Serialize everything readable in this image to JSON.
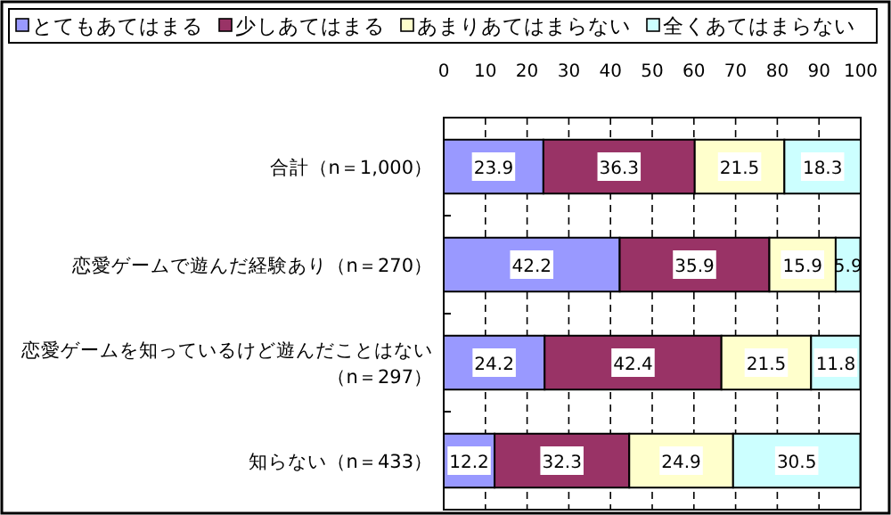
{
  "chart_data": {
    "type": "bar",
    "orientation": "horizontal",
    "stacked": true,
    "data_labels": true,
    "legend": "top",
    "grid": "x",
    "categories": [
      "合計（n＝1,000）",
      "恋愛ゲームで遊んだ経験あり（n＝270）",
      "恋愛ゲームを知っているけど遊んだことはない（n＝297）",
      "知らない（n＝433）"
    ],
    "xlim": [
      0,
      100
    ],
    "xticks": [
      0,
      10,
      20,
      30,
      40,
      50,
      60,
      70,
      80,
      90,
      100
    ],
    "series": [
      {
        "name": "とてもあてはまる",
        "color": "#9999ff",
        "values": [
          23.9,
          42.2,
          24.2,
          12.2
        ]
      },
      {
        "name": "少しあてはまる",
        "color": "#993366",
        "values": [
          36.3,
          35.9,
          42.4,
          32.3
        ]
      },
      {
        "name": "あまりあてはまらない",
        "color": "#ffffcc",
        "values": [
          21.5,
          15.9,
          21.5,
          24.9
        ]
      },
      {
        "name": "全くあてはまらない",
        "color": "#ccffff",
        "values": [
          18.3,
          5.9,
          11.8,
          30.5
        ]
      }
    ]
  }
}
